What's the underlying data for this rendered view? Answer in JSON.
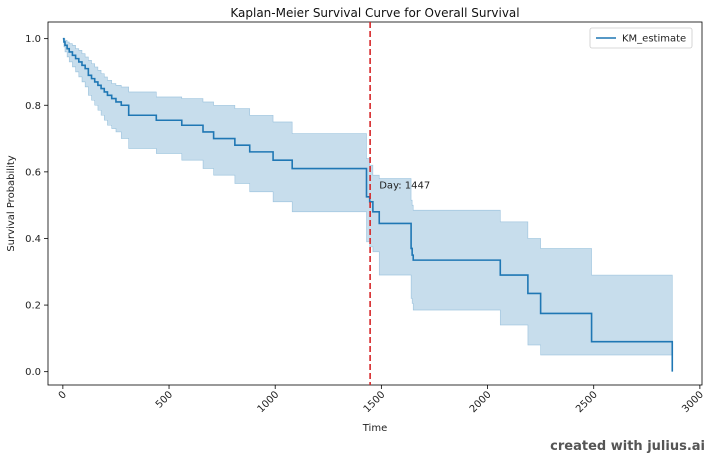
{
  "chart_data": {
    "type": "line",
    "title": "Kaplan-Meier Survival Curve for Overall Survival",
    "xlabel": "Time",
    "ylabel": "Survival Probability",
    "xlim": [
      -70,
      3010
    ],
    "ylim": [
      -0.04,
      1.05
    ],
    "xticks": [
      0,
      500,
      1000,
      1500,
      2000,
      2500,
      3000
    ],
    "yticks": [
      0.0,
      0.2,
      0.4,
      0.6,
      0.8,
      1.0
    ],
    "grid": false,
    "legend": {
      "placement": "top-right",
      "entries": [
        "KM_estimate"
      ]
    },
    "series": [
      {
        "name": "KM_estimate",
        "color": "#1f77b4",
        "step": "post",
        "x": [
          0,
          5,
          10,
          20,
          30,
          45,
          60,
          75,
          90,
          105,
          120,
          135,
          150,
          165,
          180,
          195,
          210,
          230,
          250,
          275,
          310,
          440,
          560,
          660,
          710,
          810,
          880,
          990,
          1080,
          1430,
          1445,
          1460,
          1490,
          1640,
          1645,
          1650,
          2060,
          2190,
          2250,
          2490,
          2870
        ],
        "y": [
          1.0,
          0.99,
          0.98,
          0.97,
          0.96,
          0.95,
          0.94,
          0.93,
          0.92,
          0.91,
          0.89,
          0.88,
          0.87,
          0.86,
          0.85,
          0.84,
          0.83,
          0.82,
          0.81,
          0.8,
          0.77,
          0.755,
          0.74,
          0.72,
          0.7,
          0.68,
          0.66,
          0.635,
          0.61,
          0.525,
          0.51,
          0.48,
          0.445,
          0.37,
          0.35,
          0.335,
          0.29,
          0.235,
          0.175,
          0.09,
          0.0
        ],
        "ci_lower": [
          1.0,
          0.975,
          0.96,
          0.945,
          0.93,
          0.915,
          0.9,
          0.885,
          0.87,
          0.855,
          0.83,
          0.815,
          0.8,
          0.785,
          0.77,
          0.755,
          0.74,
          0.73,
          0.72,
          0.7,
          0.67,
          0.655,
          0.635,
          0.61,
          0.59,
          0.565,
          0.54,
          0.51,
          0.48,
          0.39,
          0.375,
          0.36,
          0.29,
          0.22,
          0.205,
          0.185,
          0.14,
          0.08,
          0.05,
          0.05,
          0.05
        ],
        "ci_upper": [
          1.0,
          1.0,
          0.995,
          0.99,
          0.985,
          0.98,
          0.97,
          0.965,
          0.955,
          0.945,
          0.935,
          0.925,
          0.915,
          0.905,
          0.895,
          0.885,
          0.875,
          0.865,
          0.86,
          0.855,
          0.84,
          0.825,
          0.82,
          0.81,
          0.8,
          0.79,
          0.77,
          0.75,
          0.715,
          0.64,
          0.62,
          0.59,
          0.58,
          0.515,
          0.5,
          0.485,
          0.45,
          0.4,
          0.37,
          0.29,
          0.29
        ]
      }
    ],
    "annotations": [
      {
        "type": "vline",
        "x": 1447,
        "color": "#d62728",
        "style": "dashed"
      },
      {
        "type": "text",
        "text": "Day: 1447",
        "x": 1490,
        "y": 0.55,
        "color": "#d62728"
      }
    ]
  },
  "footer": {
    "watermark": "created with julius.ai"
  }
}
